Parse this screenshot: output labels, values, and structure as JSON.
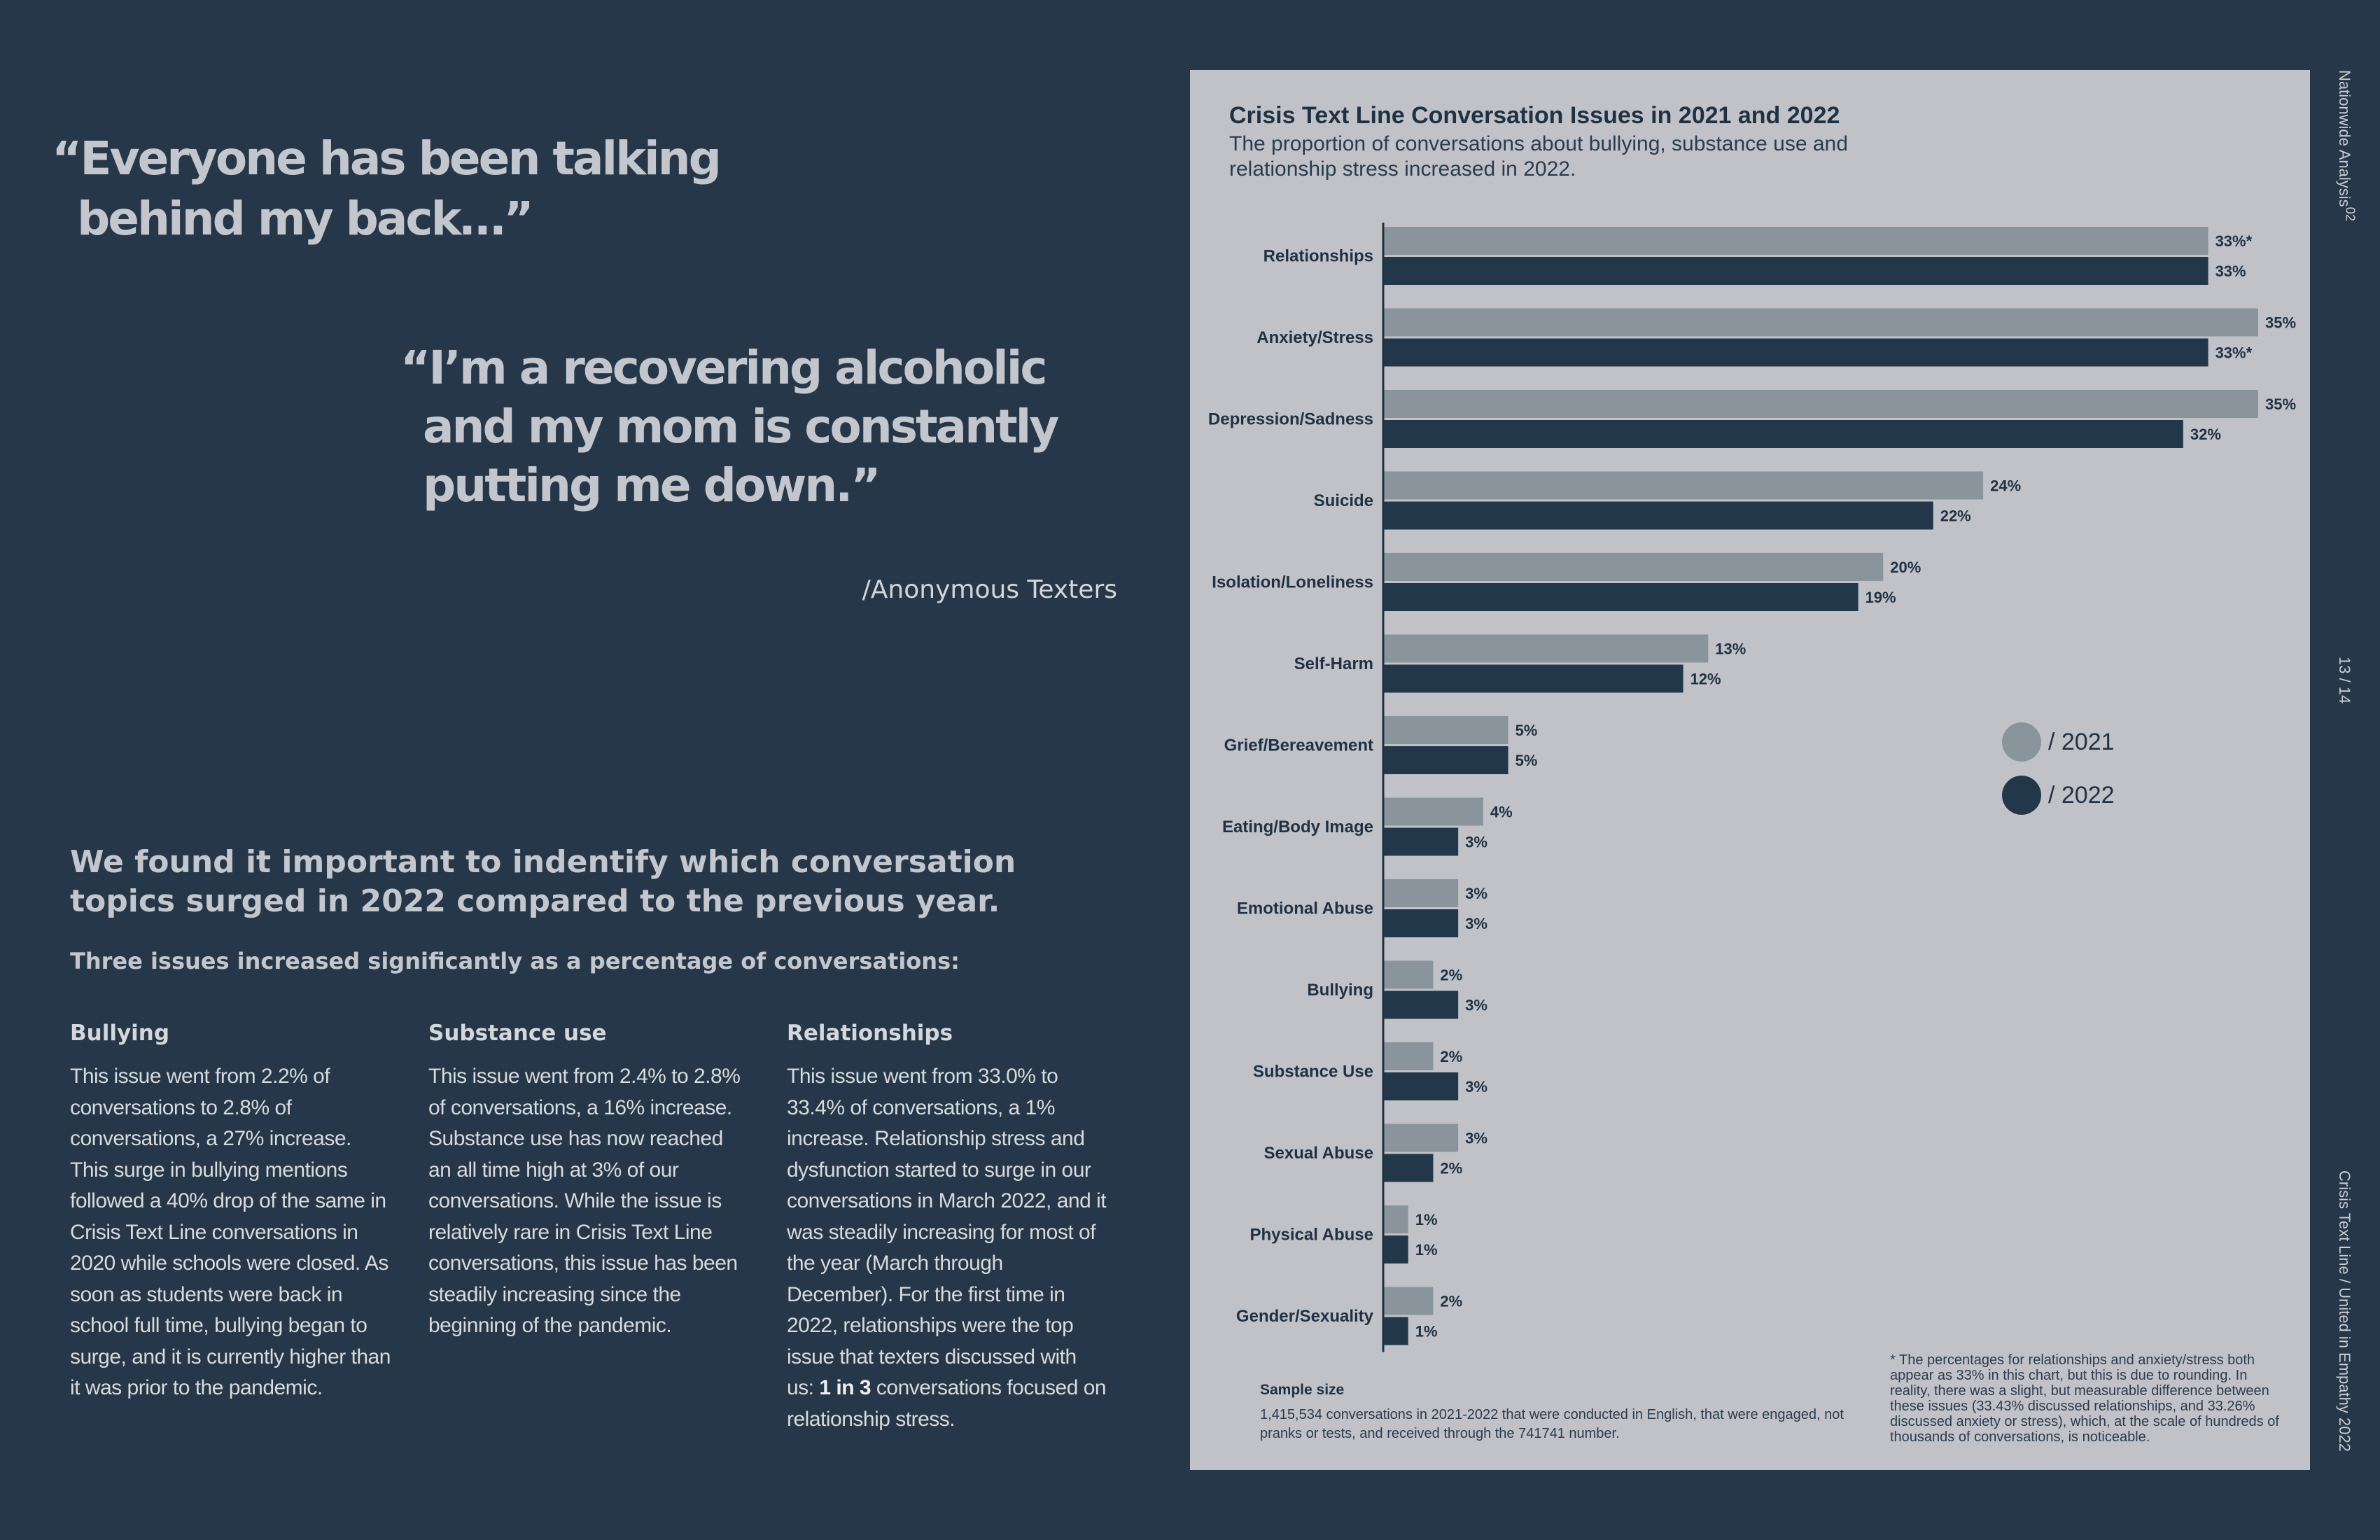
{
  "quotes": {
    "first": [
      "“Everyone has been talking",
      "behind my back…”"
    ],
    "second": [
      "“I’m a recovering alcoholic",
      "and my mom is constantly",
      "putting me down.”"
    ],
    "attribution": "/Anonymous Texters"
  },
  "intro": "We found it important to indentify which conversation topics surged in 2022 compared to the previous year.",
  "subhead": "Three issues increased significantly as a percentage of conversations:",
  "columns": [
    {
      "title": "Bullying",
      "body": "This issue went from 2.2% of conversations to 2.8% of conversations, a 27% increase. This surge in bullying mentions followed a 40% drop of the same in Crisis Text Line conversations in 2020 while schools were closed. As soon as students were back in school full time, bullying began to surge, and it is currently higher than it was prior to the pandemic."
    },
    {
      "title": "Substance use",
      "body": "This issue went from 2.4% to 2.8% of conversations, a 16% increase. Substance use has now reached an all time high at 3% of our conversations. While the issue is relatively rare in Crisis Text Line conversations, this issue has been steadily increasing since the beginning of the pandemic."
    },
    {
      "title": "Relationships",
      "body_before": "This issue went from 33.0% to 33.4% of conversations, a 1% increase. Relationship stress and dysfunction started to surge in our conversations in March 2022, and it was steadily increasing for most of the year (March through December). For the first time in 2022, relationships were the top issue that texters discussed with us: ",
      "body_bold": "1 in 3",
      "body_after": " conversations focused on relationship stress."
    }
  ],
  "chart_panel": {
    "title": "Crisis Text Line Conversation Issues in 2021 and 2022",
    "subtitle": "The proportion of conversations about bullying, substance use and relationship stress increased in 2022.",
    "sample_title": "Sample size",
    "sample_text": "1,415,534 conversations in 2021-2022 that were conducted in English, that were engaged, not pranks or tests, and received through the 741741 number.",
    "footnote": "* The percentages for relationships and anxiety/stress both appear as 33% in this chart, but this is due to rounding. In reality, there was a slight, but measurable difference between these issues (33.43% discussed relationships, and 33.26% discussed anxiety or stress), which, at the scale of hundreds of thousands of conversations, is noticeable.",
    "legend": [
      "/ 2021",
      "/ 2022"
    ]
  },
  "chart_data": {
    "type": "bar",
    "orientation": "horizontal",
    "categories": [
      "Relationships",
      "Anxiety/Stress",
      "Depression/Sadness",
      "Suicide",
      "Isolation/Loneliness",
      "Self-Harm",
      "Grief/Bereavement",
      "Eating/Body Image",
      "Emotional Abuse",
      "Bullying",
      "Substance Use",
      "Sexual Abuse",
      "Physical Abuse",
      "Gender/Sexuality"
    ],
    "series": [
      {
        "name": "/ 2021",
        "values": [
          33,
          35,
          35,
          24,
          20,
          13,
          5,
          4,
          3,
          2,
          2,
          3,
          1,
          2
        ],
        "labels": [
          "33%*",
          "35%",
          "35%",
          "24%",
          "20%",
          "13%",
          "5%",
          "4%",
          "3%",
          "2%",
          "2%",
          "3%",
          "1%",
          "2%"
        ],
        "color": "#8a949b"
      },
      {
        "name": "/ 2022",
        "values": [
          33,
          33,
          32,
          22,
          19,
          12,
          5,
          3,
          3,
          3,
          3,
          2,
          1,
          1
        ],
        "labels": [
          "33%",
          "33%*",
          "32%",
          "22%",
          "19%",
          "12%",
          "5%",
          "3%",
          "3%",
          "3%",
          "3%",
          "2%",
          "1%",
          "1%"
        ],
        "color": "#22384a"
      }
    ],
    "xlim": [
      0,
      35
    ]
  },
  "side": {
    "top": "Nationwide Analysis",
    "top_sup": "02",
    "page": "13 / 14",
    "bottom": "Crisis Text Line  /  United in Empathy 2022"
  }
}
